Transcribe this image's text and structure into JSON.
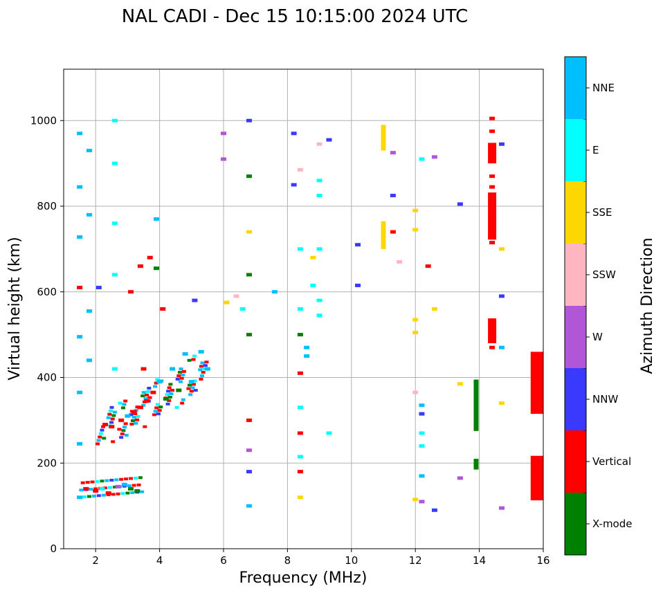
{
  "chart_data": {
    "type": "scatter",
    "title": "NAL CADI - Dec 15 10:15:00 2024 UTC",
    "xlabel": "Frequency (MHz)",
    "ylabel": "Virtual height (km)",
    "xlim": [
      1,
      16
    ],
    "ylim": [
      0,
      1120
    ],
    "xticks": [
      2,
      4,
      6,
      8,
      10,
      12,
      14,
      16
    ],
    "yticks": [
      0,
      200,
      400,
      600,
      800,
      1000
    ],
    "grid": true,
    "colorbar": {
      "title": "Azimuth Direction",
      "categories": [
        {
          "name": "X-mode",
          "color": "#008000"
        },
        {
          "name": "Vertical",
          "color": "#ff0000"
        },
        {
          "name": "NNW",
          "color": "#3a3aff"
        },
        {
          "name": "W",
          "color": "#b056d6"
        },
        {
          "name": "SSW",
          "color": "#ffb6c1"
        },
        {
          "name": "SSE",
          "color": "#ffd700"
        },
        {
          "name": "E",
          "color": "#00ffff"
        },
        {
          "name": "NNE",
          "color": "#00bfff"
        }
      ]
    },
    "segments": [
      {
        "x": 11.0,
        "y1": 930,
        "y2": 990,
        "dir": "SSE"
      },
      {
        "x": 11.0,
        "y1": 700,
        "y2": 765,
        "dir": "SSE"
      },
      {
        "x": 14.4,
        "y1": 900,
        "y2": 948,
        "dir": "Vertical"
      },
      {
        "x": 14.4,
        "y1": 722,
        "y2": 832,
        "dir": "Vertical"
      },
      {
        "x": 14.4,
        "y1": 480,
        "y2": 538,
        "dir": "Vertical"
      },
      {
        "x": 15.8,
        "y1": 315,
        "y2": 460,
        "dir": "Vertical"
      },
      {
        "x": 15.8,
        "y1": 113,
        "y2": 217,
        "dir": "Vertical"
      },
      {
        "x": 13.9,
        "y1": 275,
        "y2": 395,
        "dir": "X-mode"
      },
      {
        "x": 13.9,
        "y1": 185,
        "y2": 210,
        "dir": "X-mode"
      }
    ],
    "points": [
      {
        "x": 1.5,
        "y": 970,
        "dir": "NNE"
      },
      {
        "x": 1.5,
        "y": 845,
        "dir": "NNE"
      },
      {
        "x": 1.5,
        "y": 728,
        "dir": "NNE"
      },
      {
        "x": 1.5,
        "y": 610,
        "dir": "Vertical"
      },
      {
        "x": 1.5,
        "y": 495,
        "dir": "NNE"
      },
      {
        "x": 1.5,
        "y": 365,
        "dir": "NNE"
      },
      {
        "x": 1.5,
        "y": 245,
        "dir": "NNE"
      },
      {
        "x": 1.5,
        "y": 120,
        "dir": "NNE"
      },
      {
        "x": 1.7,
        "y": 140,
        "dir": "Vertical"
      },
      {
        "x": 1.8,
        "y": 930,
        "dir": "NNE"
      },
      {
        "x": 1.8,
        "y": 780,
        "dir": "NNE"
      },
      {
        "x": 1.8,
        "y": 555,
        "dir": "NNE"
      },
      {
        "x": 1.8,
        "y": 440,
        "dir": "NNE"
      },
      {
        "x": 2.0,
        "y": 135,
        "dir": "Vertical"
      },
      {
        "x": 2.1,
        "y": 610,
        "dir": "NNW"
      },
      {
        "x": 2.2,
        "y": 140,
        "dir": "E"
      },
      {
        "x": 2.3,
        "y": 290,
        "dir": "Vertical"
      },
      {
        "x": 2.4,
        "y": 130,
        "dir": "Vertical"
      },
      {
        "x": 2.5,
        "y": 285,
        "dir": "Vertical"
      },
      {
        "x": 2.6,
        "y": 1000,
        "dir": "E"
      },
      {
        "x": 2.6,
        "y": 900,
        "dir": "E"
      },
      {
        "x": 2.6,
        "y": 760,
        "dir": "E"
      },
      {
        "x": 2.6,
        "y": 640,
        "dir": "E"
      },
      {
        "x": 2.6,
        "y": 420,
        "dir": "E"
      },
      {
        "x": 2.7,
        "y": 145,
        "dir": "W"
      },
      {
        "x": 2.8,
        "y": 300,
        "dir": "Vertical"
      },
      {
        "x": 2.9,
        "y": 150,
        "dir": "NNE"
      },
      {
        "x": 3.0,
        "y": 310,
        "dir": "NNE"
      },
      {
        "x": 3.1,
        "y": 600,
        "dir": "Vertical"
      },
      {
        "x": 3.1,
        "y": 140,
        "dir": "X-mode"
      },
      {
        "x": 3.2,
        "y": 320,
        "dir": "Vertical"
      },
      {
        "x": 3.3,
        "y": 135,
        "dir": "X-mode"
      },
      {
        "x": 3.4,
        "y": 330,
        "dir": "Vertical"
      },
      {
        "x": 3.4,
        "y": 660,
        "dir": "Vertical"
      },
      {
        "x": 3.5,
        "y": 420,
        "dir": "Vertical"
      },
      {
        "x": 3.6,
        "y": 345,
        "dir": "Vertical"
      },
      {
        "x": 3.7,
        "y": 680,
        "dir": "Vertical"
      },
      {
        "x": 3.8,
        "y": 365,
        "dir": "Vertical"
      },
      {
        "x": 3.9,
        "y": 655,
        "dir": "X-mode"
      },
      {
        "x": 3.9,
        "y": 770,
        "dir": "NNE"
      },
      {
        "x": 4.0,
        "y": 390,
        "dir": "NNE"
      },
      {
        "x": 4.1,
        "y": 560,
        "dir": "Vertical"
      },
      {
        "x": 4.2,
        "y": 350,
        "dir": "X-mode"
      },
      {
        "x": 4.4,
        "y": 420,
        "dir": "NNE"
      },
      {
        "x": 4.6,
        "y": 370,
        "dir": "X-mode"
      },
      {
        "x": 4.8,
        "y": 455,
        "dir": "NNE"
      },
      {
        "x": 5.0,
        "y": 390,
        "dir": "NNE"
      },
      {
        "x": 5.1,
        "y": 580,
        "dir": "NNW"
      },
      {
        "x": 5.3,
        "y": 460,
        "dir": "NNE"
      },
      {
        "x": 5.5,
        "y": 420,
        "dir": "NNE"
      },
      {
        "x": 6.0,
        "y": 970,
        "dir": "W"
      },
      {
        "x": 6.0,
        "y": 910,
        "dir": "W"
      },
      {
        "x": 6.1,
        "y": 575,
        "dir": "SSE"
      },
      {
        "x": 6.4,
        "y": 590,
        "dir": "SSW"
      },
      {
        "x": 6.6,
        "y": 560,
        "dir": "E"
      },
      {
        "x": 6.8,
        "y": 1000,
        "dir": "NNW"
      },
      {
        "x": 6.8,
        "y": 870,
        "dir": "X-mode"
      },
      {
        "x": 6.8,
        "y": 740,
        "dir": "SSE"
      },
      {
        "x": 6.8,
        "y": 640,
        "dir": "X-mode"
      },
      {
        "x": 6.8,
        "y": 500,
        "dir": "X-mode"
      },
      {
        "x": 6.8,
        "y": 300,
        "dir": "Vertical"
      },
      {
        "x": 6.8,
        "y": 230,
        "dir": "W"
      },
      {
        "x": 6.8,
        "y": 180,
        "dir": "NNW"
      },
      {
        "x": 6.8,
        "y": 100,
        "dir": "NNE"
      },
      {
        "x": 7.6,
        "y": 600,
        "dir": "NNE"
      },
      {
        "x": 8.2,
        "y": 970,
        "dir": "NNW"
      },
      {
        "x": 8.2,
        "y": 850,
        "dir": "NNW"
      },
      {
        "x": 8.4,
        "y": 885,
        "dir": "SSW"
      },
      {
        "x": 8.4,
        "y": 700,
        "dir": "E"
      },
      {
        "x": 8.4,
        "y": 560,
        "dir": "E"
      },
      {
        "x": 8.4,
        "y": 500,
        "dir": "X-mode"
      },
      {
        "x": 8.4,
        "y": 410,
        "dir": "Vertical"
      },
      {
        "x": 8.4,
        "y": 330,
        "dir": "E"
      },
      {
        "x": 8.4,
        "y": 270,
        "dir": "Vertical"
      },
      {
        "x": 8.4,
        "y": 215,
        "dir": "E"
      },
      {
        "x": 8.4,
        "y": 180,
        "dir": "Vertical"
      },
      {
        "x": 8.4,
        "y": 120,
        "dir": "SSE"
      },
      {
        "x": 8.6,
        "y": 470,
        "dir": "NNE"
      },
      {
        "x": 8.6,
        "y": 450,
        "dir": "NNE"
      },
      {
        "x": 8.8,
        "y": 615,
        "dir": "E"
      },
      {
        "x": 8.8,
        "y": 680,
        "dir": "SSE"
      },
      {
        "x": 9.0,
        "y": 945,
        "dir": "SSW"
      },
      {
        "x": 9.0,
        "y": 860,
        "dir": "E"
      },
      {
        "x": 9.0,
        "y": 825,
        "dir": "E"
      },
      {
        "x": 9.0,
        "y": 700,
        "dir": "E"
      },
      {
        "x": 9.0,
        "y": 580,
        "dir": "E"
      },
      {
        "x": 9.0,
        "y": 545,
        "dir": "E"
      },
      {
        "x": 9.3,
        "y": 955,
        "dir": "NNW"
      },
      {
        "x": 9.3,
        "y": 270,
        "dir": "E"
      },
      {
        "x": 10.2,
        "y": 710,
        "dir": "NNW"
      },
      {
        "x": 10.2,
        "y": 615,
        "dir": "NNW"
      },
      {
        "x": 11.3,
        "y": 925,
        "dir": "W"
      },
      {
        "x": 11.3,
        "y": 825,
        "dir": "NNW"
      },
      {
        "x": 11.3,
        "y": 740,
        "dir": "Vertical"
      },
      {
        "x": 11.5,
        "y": 670,
        "dir": "SSW"
      },
      {
        "x": 12.0,
        "y": 790,
        "dir": "SSE"
      },
      {
        "x": 12.0,
        "y": 745,
        "dir": "SSE"
      },
      {
        "x": 12.0,
        "y": 535,
        "dir": "SSE"
      },
      {
        "x": 12.0,
        "y": 505,
        "dir": "SSE"
      },
      {
        "x": 12.0,
        "y": 365,
        "dir": "SSW"
      },
      {
        "x": 12.0,
        "y": 115,
        "dir": "SSE"
      },
      {
        "x": 12.2,
        "y": 910,
        "dir": "E"
      },
      {
        "x": 12.2,
        "y": 335,
        "dir": "NNE"
      },
      {
        "x": 12.2,
        "y": 315,
        "dir": "NNW"
      },
      {
        "x": 12.2,
        "y": 270,
        "dir": "E"
      },
      {
        "x": 12.2,
        "y": 240,
        "dir": "E"
      },
      {
        "x": 12.2,
        "y": 170,
        "dir": "NNE"
      },
      {
        "x": 12.2,
        "y": 110,
        "dir": "W"
      },
      {
        "x": 12.4,
        "y": 660,
        "dir": "Vertical"
      },
      {
        "x": 12.6,
        "y": 915,
        "dir": "W"
      },
      {
        "x": 12.6,
        "y": 560,
        "dir": "SSE"
      },
      {
        "x": 12.6,
        "y": 90,
        "dir": "NNW"
      },
      {
        "x": 13.4,
        "y": 805,
        "dir": "NNW"
      },
      {
        "x": 13.4,
        "y": 385,
        "dir": "SSE"
      },
      {
        "x": 13.4,
        "y": 165,
        "dir": "W"
      },
      {
        "x": 14.4,
        "y": 1005,
        "dir": "Vertical"
      },
      {
        "x": 14.4,
        "y": 975,
        "dir": "Vertical"
      },
      {
        "x": 14.4,
        "y": 870,
        "dir": "Vertical"
      },
      {
        "x": 14.4,
        "y": 845,
        "dir": "Vertical"
      },
      {
        "x": 14.4,
        "y": 715,
        "dir": "Vertical"
      },
      {
        "x": 14.4,
        "y": 470,
        "dir": "Vertical"
      },
      {
        "x": 14.7,
        "y": 945,
        "dir": "NNW"
      },
      {
        "x": 14.7,
        "y": 700,
        "dir": "SSE"
      },
      {
        "x": 14.7,
        "y": 590,
        "dir": "NNW"
      },
      {
        "x": 14.7,
        "y": 470,
        "dir": "NNE"
      },
      {
        "x": 14.7,
        "y": 340,
        "dir": "SSE"
      },
      {
        "x": 14.7,
        "y": 95,
        "dir": "W"
      }
    ],
    "cluster_E_trace": [
      [
        2.2,
        285
      ],
      [
        2.4,
        290
      ],
      [
        2.6,
        295
      ],
      [
        2.8,
        300
      ],
      [
        3.0,
        305
      ],
      [
        3.2,
        315
      ],
      [
        3.4,
        325
      ],
      [
        3.6,
        335
      ],
      [
        3.8,
        345
      ],
      [
        4.0,
        355
      ],
      [
        4.2,
        360
      ],
      [
        4.4,
        370
      ],
      [
        4.6,
        380
      ],
      [
        4.8,
        390
      ],
      [
        5.0,
        400
      ],
      [
        5.2,
        410
      ],
      [
        5.4,
        420
      ]
    ]
  }
}
